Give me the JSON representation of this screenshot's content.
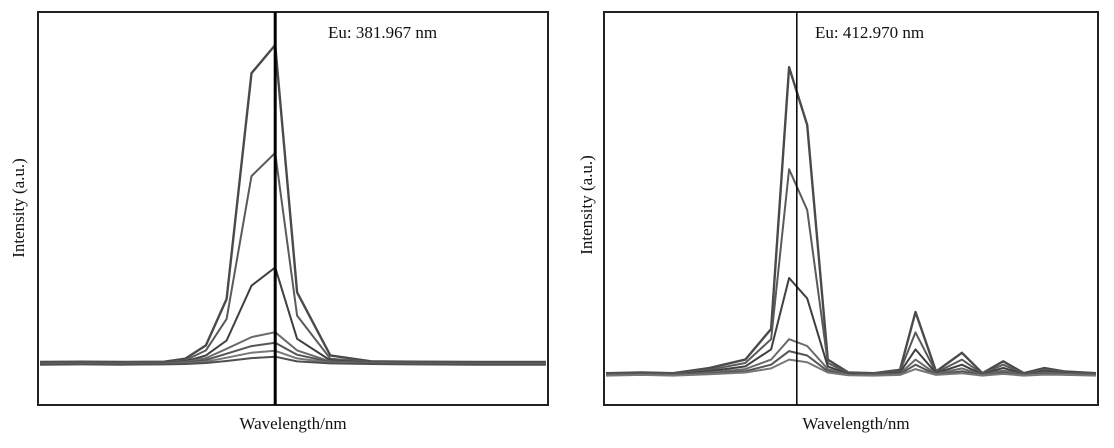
{
  "chart_data": [
    {
      "type": "line",
      "element": "Eu",
      "annotation": "Eu: 381.967 nm",
      "marker_x": 381.967,
      "xlabel": "Wavelength/nm",
      "ylabel": "Intensity (a.u.)",
      "xlim": [
        381.4,
        382.62
      ],
      "ylim": [
        0,
        1
      ],
      "x": [
        381.4,
        381.5,
        381.6,
        381.7,
        381.75,
        381.8,
        381.85,
        381.91,
        381.967,
        382.02,
        382.1,
        382.2,
        382.3,
        382.45,
        382.62
      ],
      "series": [
        {
          "values": [
            0.03,
            0.031,
            0.03,
            0.031,
            0.04,
            0.08,
            0.22,
            0.9,
            0.985,
            0.24,
            0.05,
            0.032,
            0.031,
            0.03,
            0.03
          ]
        },
        {
          "values": [
            0.028,
            0.029,
            0.028,
            0.029,
            0.035,
            0.065,
            0.16,
            0.59,
            0.66,
            0.17,
            0.04,
            0.03,
            0.029,
            0.028,
            0.028
          ]
        },
        {
          "values": [
            0.026,
            0.027,
            0.026,
            0.027,
            0.032,
            0.05,
            0.095,
            0.26,
            0.315,
            0.1,
            0.035,
            0.028,
            0.027,
            0.026,
            0.026
          ]
        },
        {
          "values": [
            0.025,
            0.026,
            0.025,
            0.026,
            0.03,
            0.042,
            0.07,
            0.105,
            0.12,
            0.065,
            0.032,
            0.027,
            0.026,
            0.025,
            0.025
          ]
        },
        {
          "values": [
            0.024,
            0.025,
            0.024,
            0.025,
            0.028,
            0.036,
            0.055,
            0.078,
            0.088,
            0.052,
            0.03,
            0.026,
            0.025,
            0.024,
            0.024
          ]
        },
        {
          "values": [
            0.023,
            0.024,
            0.023,
            0.024,
            0.026,
            0.031,
            0.043,
            0.058,
            0.064,
            0.041,
            0.028,
            0.025,
            0.024,
            0.023,
            0.023
          ]
        },
        {
          "values": [
            0.022,
            0.023,
            0.022,
            0.023,
            0.024,
            0.027,
            0.033,
            0.042,
            0.046,
            0.032,
            0.026,
            0.024,
            0.023,
            0.022,
            0.022
          ]
        }
      ]
    },
    {
      "type": "line",
      "element": "Eu",
      "annotation": "Eu: 412.970 nm",
      "marker_x": 412.97,
      "xlabel": "Wavelength/nm",
      "ylabel": "Intensity (a.u.)",
      "xlim": [
        412.6,
        413.55
      ],
      "ylim": [
        0,
        1
      ],
      "x": [
        412.6,
        412.67,
        412.73,
        412.8,
        412.87,
        412.92,
        412.955,
        412.99,
        413.03,
        413.07,
        413.12,
        413.17,
        413.2,
        413.24,
        413.29,
        413.33,
        413.37,
        413.41,
        413.45,
        413.49,
        413.55
      ],
      "series": [
        {
          "values": [
            0.02,
            0.022,
            0.02,
            0.035,
            0.06,
            0.15,
            0.92,
            0.75,
            0.06,
            0.022,
            0.02,
            0.03,
            0.2,
            0.025,
            0.08,
            0.02,
            0.055,
            0.02,
            0.035,
            0.025,
            0.02
          ]
        },
        {
          "values": [
            0.018,
            0.02,
            0.018,
            0.03,
            0.05,
            0.12,
            0.62,
            0.5,
            0.05,
            0.02,
            0.018,
            0.026,
            0.14,
            0.022,
            0.06,
            0.018,
            0.045,
            0.018,
            0.03,
            0.022,
            0.018
          ]
        },
        {
          "values": [
            0.016,
            0.018,
            0.016,
            0.026,
            0.04,
            0.09,
            0.3,
            0.24,
            0.04,
            0.018,
            0.016,
            0.022,
            0.09,
            0.02,
            0.045,
            0.016,
            0.036,
            0.016,
            0.026,
            0.02,
            0.016
          ]
        },
        {
          "values": [
            0.015,
            0.017,
            0.015,
            0.022,
            0.032,
            0.06,
            0.12,
            0.1,
            0.032,
            0.016,
            0.015,
            0.019,
            0.06,
            0.018,
            0.034,
            0.015,
            0.028,
            0.015,
            0.022,
            0.018,
            0.015
          ]
        },
        {
          "values": [
            0.014,
            0.016,
            0.014,
            0.019,
            0.026,
            0.045,
            0.085,
            0.072,
            0.026,
            0.015,
            0.014,
            0.017,
            0.045,
            0.016,
            0.026,
            0.014,
            0.022,
            0.014,
            0.019,
            0.016,
            0.014
          ]
        },
        {
          "values": [
            0.013,
            0.015,
            0.013,
            0.017,
            0.022,
            0.034,
            0.06,
            0.052,
            0.022,
            0.014,
            0.013,
            0.015,
            0.032,
            0.015,
            0.02,
            0.013,
            0.018,
            0.013,
            0.016,
            0.015,
            0.013
          ]
        }
      ]
    }
  ]
}
